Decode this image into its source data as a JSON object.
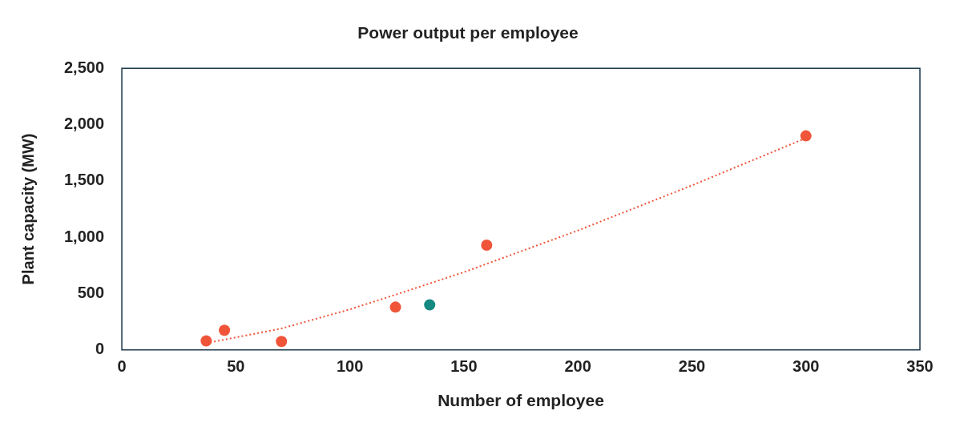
{
  "chart_data": {
    "type": "scatter",
    "title": "Power output per employee",
    "xlabel": "Number of employee",
    "ylabel": "Plant capacity (MW)",
    "series": [
      {
        "color": "#f0553a",
        "marker": "circle",
        "x": [
          37,
          45,
          70,
          120,
          160,
          300
        ],
        "values": [
          80,
          175,
          75,
          380,
          930,
          1900
        ]
      },
      {
        "color": "#168a82",
        "marker": "circle",
        "x": [
          135
        ],
        "values": [
          400
        ]
      },
      {
        "type": "line",
        "color": "#f0553a",
        "marker": "none",
        "line_style": "dotted",
        "x": [
          37,
          70,
          100,
          120,
          150,
          200,
          250,
          300
        ],
        "values": [
          60,
          190,
          360,
          490,
          690,
          1060,
          1460,
          1880
        ]
      }
    ],
    "xlim": [
      0,
      350
    ],
    "xticks": [
      0,
      50,
      100,
      150,
      200,
      250,
      300,
      350
    ],
    "ylim": [
      0,
      2500
    ],
    "yticks": [
      0,
      500,
      {
        "value": 1000,
        "label": "1,000"
      },
      {
        "value": 1500,
        "label": "1,500"
      },
      {
        "value": 2000,
        "label": "2,000"
      },
      {
        "value": 2500,
        "label": "2,500"
      }
    ],
    "grid": false,
    "legend": false
  }
}
